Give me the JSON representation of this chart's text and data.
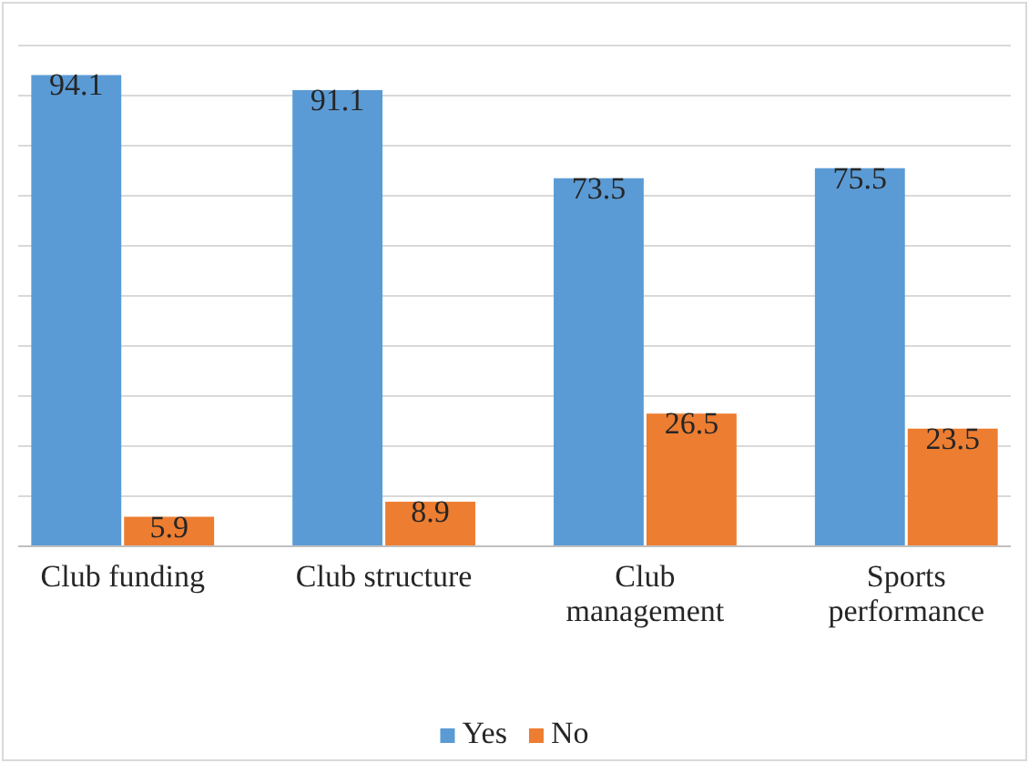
{
  "chart_data": {
    "type": "bar",
    "categories": [
      "Club funding",
      "Club structure",
      "Club management",
      "Sports performance"
    ],
    "series": [
      {
        "name": "Yes",
        "color": "#5b9bd5",
        "values": [
          94.1,
          91.1,
          73.5,
          75.5
        ]
      },
      {
        "name": "No",
        "color": "#ed7d31",
        "values": [
          5.9,
          8.9,
          26.5,
          23.5
        ]
      }
    ],
    "ylim": [
      0,
      100
    ],
    "yticks": [
      {
        "value": 0,
        "label": null
      },
      {
        "value": 10,
        "label": null
      },
      {
        "value": 20,
        "label": null
      },
      {
        "value": 30,
        "label": null
      },
      {
        "value": 40,
        "label": null
      },
      {
        "value": 50,
        "label": null
      },
      {
        "value": 60,
        "label": null
      },
      {
        "value": 70,
        "label": null
      },
      {
        "value": 80,
        "label": null
      },
      {
        "value": 90,
        "label": null
      },
      {
        "value": 100,
        "label": null
      }
    ],
    "tick_labels": "x",
    "grid": "y",
    "data_labels": true,
    "legend": "bottom"
  }
}
